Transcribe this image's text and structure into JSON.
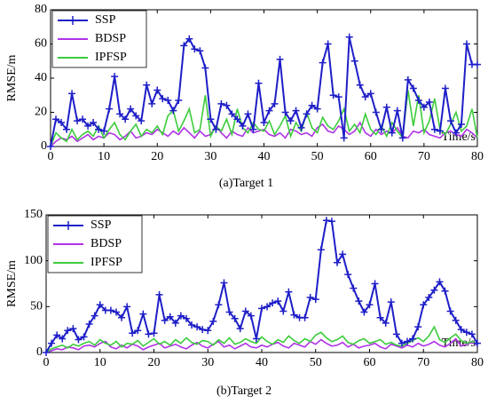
{
  "chart_data": [
    {
      "type": "line",
      "title": "(a)Target 1",
      "ylabel": "RMSE/m",
      "xlabel": "Time/s",
      "x": [
        0,
        1,
        2,
        3,
        4,
        5,
        6,
        7,
        8,
        9,
        10,
        11,
        12,
        13,
        14,
        15,
        16,
        17,
        18,
        19,
        20,
        21,
        22,
        23,
        24,
        25,
        26,
        27,
        28,
        29,
        30,
        31,
        32,
        33,
        34,
        35,
        36,
        37,
        38,
        39,
        40,
        41,
        42,
        43,
        44,
        45,
        46,
        47,
        48,
        49,
        50,
        51,
        52,
        53,
        54,
        55,
        56,
        57,
        58,
        59,
        60,
        61,
        62,
        63,
        64,
        65,
        66,
        67,
        68,
        69,
        70,
        71,
        72,
        73,
        74,
        75,
        76,
        77,
        78,
        79,
        80
      ],
      "xlim": [
        0,
        80
      ],
      "xticks": [
        0,
        10,
        20,
        30,
        40,
        50,
        60,
        70,
        80
      ],
      "ylim": [
        0,
        80
      ],
      "yticks": [
        0,
        20,
        40,
        60,
        80
      ],
      "legend": "upper left",
      "series": [
        {
          "name": "SSP",
          "color": "#1e1ec8",
          "marker": "+",
          "values": [
            0,
            16,
            14,
            10,
            31,
            15,
            16,
            12,
            14,
            10,
            9,
            22,
            41,
            19,
            16,
            22,
            18,
            15,
            36,
            25,
            33,
            28,
            27,
            21,
            27,
            59,
            63,
            57,
            56,
            46,
            16,
            10,
            25,
            24,
            19,
            16,
            12,
            19,
            10,
            37,
            14,
            21,
            25,
            51,
            20,
            15,
            21,
            11,
            19,
            24,
            22,
            49,
            60,
            30,
            29,
            5,
            64,
            50,
            36,
            29,
            31,
            20,
            10,
            23,
            8,
            21,
            5,
            39,
            34,
            27,
            23,
            26,
            10,
            9,
            34,
            15,
            8,
            13,
            60,
            48,
            48
          ]
        },
        {
          "name": "BDSP",
          "color": "#b032e6",
          "values": [
            0,
            3,
            5,
            4,
            6,
            3,
            5,
            7,
            4,
            6,
            5,
            8,
            7,
            4,
            6,
            9,
            5,
            6,
            8,
            7,
            10,
            8,
            6,
            9,
            7,
            11,
            8,
            5,
            9,
            6,
            7,
            12,
            8,
            5,
            9,
            7,
            6,
            11,
            8,
            9,
            10,
            7,
            6,
            8,
            5,
            10,
            9,
            7,
            8,
            6,
            11,
            13,
            9,
            8,
            12,
            10,
            7,
            9,
            14,
            8,
            6,
            10,
            7,
            9,
            8,
            11,
            6,
            5,
            9,
            8,
            10,
            7,
            6,
            5,
            8,
            9,
            7,
            6,
            10,
            8,
            5
          ]
        },
        {
          "name": "IPFSP",
          "color": "#3ccc3c",
          "values": [
            0,
            8,
            5,
            3,
            10,
            4,
            7,
            9,
            6,
            12,
            5,
            10,
            14,
            7,
            4,
            9,
            13,
            6,
            10,
            8,
            12,
            7,
            18,
            21,
            9,
            15,
            22,
            8,
            10,
            30,
            6,
            12,
            9,
            16,
            7,
            22,
            11,
            8,
            14,
            10,
            9,
            15,
            7,
            12,
            18,
            6,
            14,
            9,
            20,
            11,
            8,
            17,
            12,
            10,
            15,
            22,
            9,
            13,
            8,
            19,
            10,
            7,
            12,
            6,
            14,
            9,
            5,
            33,
            12,
            30,
            8,
            15,
            28,
            10,
            7,
            13,
            20,
            9,
            12,
            22,
            5
          ]
        }
      ]
    },
    {
      "type": "line",
      "title": "(b)Target 2",
      "ylabel": "RMSE/m",
      "xlabel": "Time/s",
      "x": [
        0,
        1,
        2,
        3,
        4,
        5,
        6,
        7,
        8,
        9,
        10,
        11,
        12,
        13,
        14,
        15,
        16,
        17,
        18,
        19,
        20,
        21,
        22,
        23,
        24,
        25,
        26,
        27,
        28,
        29,
        30,
        31,
        32,
        33,
        34,
        35,
        36,
        37,
        38,
        39,
        40,
        41,
        42,
        43,
        44,
        45,
        46,
        47,
        48,
        49,
        50,
        51,
        52,
        53,
        54,
        55,
        56,
        57,
        58,
        59,
        60,
        61,
        62,
        63,
        64,
        65,
        66,
        67,
        68,
        69,
        70,
        71,
        72,
        73,
        74,
        75,
        76,
        77,
        78,
        79,
        80
      ],
      "xlim": [
        0,
        80
      ],
      "xticks": [
        0,
        10,
        20,
        30,
        40,
        50,
        60,
        70,
        80
      ],
      "ylim": [
        0,
        150
      ],
      "yticks": [
        0,
        50,
        100,
        150
      ],
      "legend": "upper left",
      "series": [
        {
          "name": "SSP",
          "color": "#1e1ec8",
          "marker": "+",
          "values": [
            0,
            10,
            19,
            15,
            24,
            26,
            14,
            17,
            31,
            40,
            52,
            46,
            46,
            44,
            38,
            50,
            21,
            24,
            42,
            20,
            21,
            63,
            35,
            39,
            32,
            40,
            37,
            30,
            28,
            25,
            24,
            34,
            52,
            76,
            44,
            37,
            26,
            45,
            40,
            15,
            48,
            50,
            54,
            56,
            45,
            66,
            41,
            38,
            38,
            60,
            58,
            112,
            144,
            143,
            98,
            107,
            85,
            70,
            56,
            44,
            52,
            75,
            38,
            32,
            55,
            20,
            10,
            12,
            15,
            28,
            52,
            60,
            68,
            77,
            67,
            45,
            35,
            25,
            22,
            20,
            10
          ]
        },
        {
          "name": "BDSP",
          "color": "#b032e6",
          "values": [
            0,
            2,
            4,
            3,
            6,
            5,
            3,
            7,
            8,
            6,
            10,
            12,
            6,
            4,
            8,
            5,
            9,
            7,
            3,
            6,
            8,
            10,
            5,
            7,
            9,
            6,
            4,
            8,
            11,
            7,
            5,
            9,
            12,
            6,
            8,
            4,
            7,
            10,
            6,
            5,
            8,
            6,
            9,
            11,
            7,
            5,
            10,
            8,
            6,
            12,
            9,
            14,
            10,
            7,
            8,
            11,
            6,
            9,
            5,
            7,
            8,
            10,
            6,
            4,
            9,
            7,
            5,
            8,
            6,
            10,
            7,
            9,
            12,
            8,
            6,
            10,
            15,
            7,
            9,
            11,
            8
          ]
        },
        {
          "name": "IPFSP",
          "color": "#3ccc3c",
          "values": [
            0,
            4,
            6,
            8,
            5,
            9,
            7,
            10,
            12,
            8,
            14,
            10,
            8,
            12,
            6,
            10,
            9,
            13,
            7,
            11,
            15,
            9,
            12,
            8,
            14,
            10,
            16,
            11,
            9,
            13,
            12,
            8,
            14,
            10,
            16,
            9,
            11,
            15,
            12,
            10,
            17,
            12,
            9,
            14,
            11,
            18,
            13,
            10,
            15,
            12,
            19,
            22,
            16,
            12,
            14,
            18,
            11,
            9,
            13,
            15,
            10,
            12,
            14,
            9,
            11,
            8,
            7,
            10,
            13,
            16,
            12,
            18,
            28,
            14,
            11,
            16,
            20,
            13,
            10,
            12,
            9
          ]
        }
      ]
    }
  ]
}
